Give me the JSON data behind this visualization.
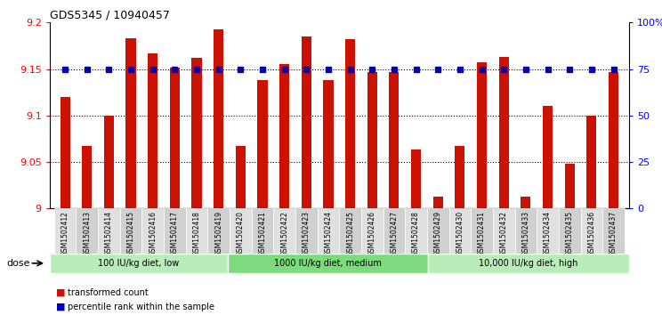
{
  "title": "GDS5345 / 10940457",
  "samples": [
    "GSM1502412",
    "GSM1502413",
    "GSM1502414",
    "GSM1502415",
    "GSM1502416",
    "GSM1502417",
    "GSM1502418",
    "GSM1502419",
    "GSM1502420",
    "GSM1502421",
    "GSM1502422",
    "GSM1502423",
    "GSM1502424",
    "GSM1502425",
    "GSM1502426",
    "GSM1502427",
    "GSM1502428",
    "GSM1502429",
    "GSM1502430",
    "GSM1502431",
    "GSM1502432",
    "GSM1502433",
    "GSM1502434",
    "GSM1502435",
    "GSM1502436",
    "GSM1502437"
  ],
  "bar_values": [
    9.12,
    9.067,
    9.1,
    9.183,
    9.167,
    9.152,
    9.162,
    9.193,
    9.067,
    9.138,
    9.155,
    9.185,
    9.138,
    9.182,
    9.147,
    9.147,
    9.063,
    9.013,
    9.067,
    9.157,
    9.163,
    9.013,
    9.11,
    9.048,
    9.1,
    9.147
  ],
  "percentile_values": [
    75,
    75,
    75,
    75,
    75,
    75,
    75,
    75,
    75,
    75,
    75,
    75,
    75,
    75,
    75,
    75,
    75,
    75,
    75,
    75,
    75,
    75,
    75,
    75,
    75,
    75
  ],
  "groups": [
    {
      "label": "100 IU/kg diet, low",
      "start": 0,
      "end": 8
    },
    {
      "label": "1000 IU/kg diet, medium",
      "start": 8,
      "end": 17
    },
    {
      "label": "10,000 IU/kg diet, high",
      "start": 17,
      "end": 26
    }
  ],
  "group_colors": [
    "#b8ecb8",
    "#7ddb7d",
    "#b8ecb8"
  ],
  "bar_color": "#CC1100",
  "dot_color": "#0000BB",
  "ylim_left": [
    9.0,
    9.2
  ],
  "ylim_right": [
    0,
    100
  ],
  "yticks_left": [
    9.0,
    9.05,
    9.1,
    9.15,
    9.2
  ],
  "ytick_labels_left": [
    "9",
    "9.05",
    "9.1",
    "9.15",
    "9.2"
  ],
  "yticks_right": [
    0,
    25,
    50,
    75,
    100
  ],
  "ytick_labels_right": [
    "0",
    "25",
    "50",
    "75",
    "100%"
  ],
  "hlines": [
    9.05,
    9.1,
    9.15
  ],
  "background_color": "#FFFFFF",
  "legend_items": [
    {
      "label": "transformed count",
      "color": "#CC1100"
    },
    {
      "label": "percentile rank within the sample",
      "color": "#0000BB"
    }
  ],
  "dose_label": "dose"
}
